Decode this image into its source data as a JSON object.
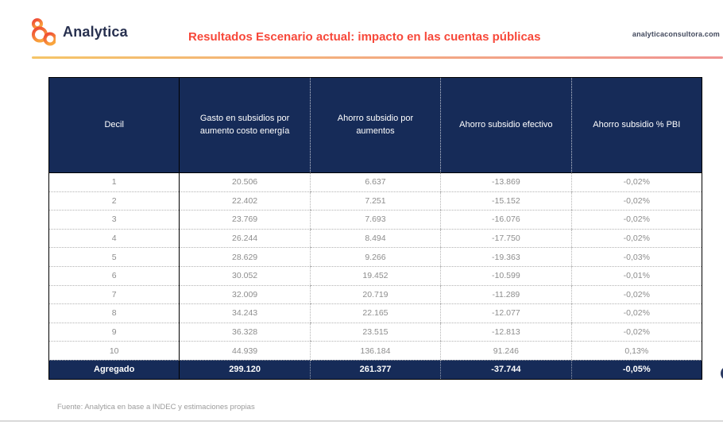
{
  "header": {
    "logo_text": "Analytica",
    "title": "Resultados Escenario actual: impacto en las cuentas públicas",
    "website": "analyticaconsultora.com"
  },
  "table": {
    "columns": [
      "Decil",
      "Gasto en subsidios por aumento costo energía",
      "Ahorro subsidio por aumentos",
      "Ahorro subsidio efectivo",
      "Ahorro subsidio % PBI"
    ],
    "rows": [
      [
        "1",
        "20.506",
        "6.637",
        "-13.869",
        "-0,02%"
      ],
      [
        "2",
        "22.402",
        "7.251",
        "-15.152",
        "-0,02%"
      ],
      [
        "3",
        "23.769",
        "7.693",
        "-16.076",
        "-0,02%"
      ],
      [
        "4",
        "26.244",
        "8.494",
        "-17.750",
        "-0,02%"
      ],
      [
        "5",
        "28.629",
        "9.266",
        "-19.363",
        "-0,03%"
      ],
      [
        "6",
        "30.052",
        "19.452",
        "-10.599",
        "-0,01%"
      ],
      [
        "7",
        "32.009",
        "20.719",
        "-11.289",
        "-0,02%"
      ],
      [
        "8",
        "34.243",
        "22.165",
        "-12.077",
        "-0,02%"
      ],
      [
        "9",
        "36.328",
        "23.515",
        "-12.813",
        "-0,02%"
      ],
      [
        "10",
        "44.939",
        "136.184",
        "91.246",
        "0,13%"
      ]
    ],
    "total_row": [
      "Agregado",
      "299.120",
      "261.377",
      "-37.744",
      "-0,05%"
    ]
  },
  "footer": {
    "source": "Fuente: Analytica en base a INDEC y estimaciones propias"
  },
  "colors": {
    "navy": "#162b58",
    "title_red": "#f7483a",
    "gradient_start": "#f5c568",
    "gradient_end": "#f09492",
    "logo_gradient_top": "#ee4434",
    "logo_gradient_bottom": "#f9a63d",
    "body_text": "#8d8d8d"
  }
}
